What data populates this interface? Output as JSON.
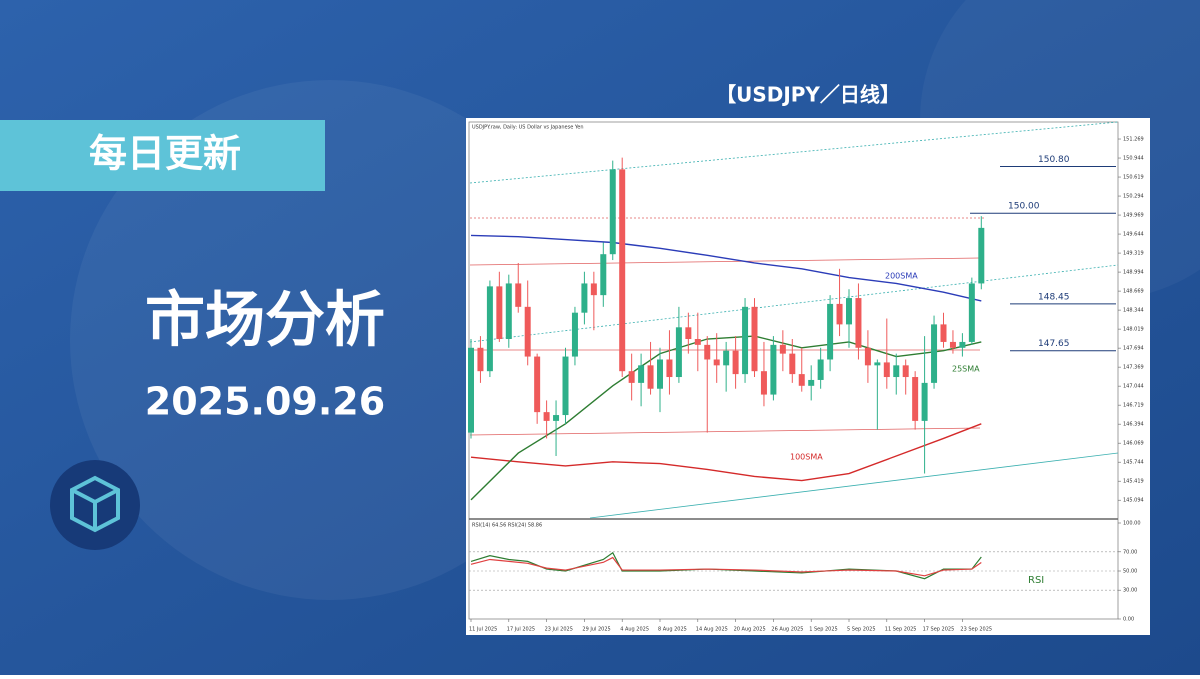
{
  "banner": {
    "tag": "每日更新",
    "title": "市场分析",
    "date": "2025.09.26"
  },
  "chart_heading": "【USDJPY／日线】",
  "chart_data": {
    "type": "candlestick",
    "header": "USDJPY.raw, Daily: US Dollar vs Japanese Yen",
    "categories": [
      "11 Jul 2025",
      null,
      null,
      null,
      "17 Jul 2025",
      null,
      null,
      null,
      "23 Jul 2025",
      null,
      null,
      null,
      "29 Jul 2025",
      null,
      null,
      null,
      "4 Aug 2025",
      null,
      null,
      null,
      "8 Aug 2025",
      null,
      null,
      null,
      "14 Aug 2025",
      null,
      null,
      null,
      "20 Aug 2025",
      null,
      null,
      null,
      "26 Aug 2025",
      null,
      null,
      null,
      "1 Sep 2025",
      null,
      null,
      null,
      "5 Sep 2025",
      null,
      null,
      null,
      "11 Sep 2025",
      null,
      null,
      null,
      "17 Sep 2025",
      null,
      null,
      null,
      "23 Sep 2025",
      null,
      null
    ],
    "open": [
      146.25,
      147.7,
      147.3,
      148.75,
      147.85,
      148.8,
      148.4,
      147.55,
      146.6,
      146.45,
      146.55,
      147.55,
      148.3,
      148.8,
      148.6,
      149.3,
      150.75,
      147.3,
      147.1,
      147.4,
      147.0,
      147.5,
      147.2,
      148.05,
      147.85,
      147.75,
      147.5,
      147.4,
      147.65,
      147.25,
      148.4,
      147.3,
      146.9,
      147.75,
      147.6,
      147.25,
      147.05,
      147.15,
      147.5,
      148.45,
      148.1,
      148.55,
      147.7,
      147.4,
      147.45,
      147.2,
      147.4,
      147.2,
      146.45,
      147.1,
      148.1,
      147.8,
      147.7,
      147.8,
      148.8
    ],
    "high": [
      147.85,
      147.9,
      148.85,
      149.0,
      148.95,
      149.15,
      148.85,
      147.6,
      146.8,
      146.8,
      147.7,
      148.4,
      149.0,
      149.0,
      149.5,
      150.9,
      150.95,
      147.6,
      147.6,
      147.8,
      147.7,
      148.0,
      148.4,
      148.3,
      148.3,
      147.9,
      147.95,
      147.8,
      147.9,
      148.55,
      148.55,
      147.8,
      147.9,
      148.0,
      147.85,
      147.7,
      147.4,
      147.7,
      148.6,
      149.05,
      148.7,
      148.8,
      148.0,
      147.5,
      148.2,
      147.6,
      147.5,
      147.3,
      147.9,
      148.25,
      148.3,
      148.0,
      147.95,
      148.9,
      149.95
    ],
    "low": [
      146.15,
      147.1,
      147.2,
      147.8,
      147.7,
      148.3,
      147.4,
      146.4,
      146.15,
      145.85,
      146.4,
      147.4,
      148.1,
      148.0,
      148.4,
      149.2,
      147.2,
      146.8,
      146.7,
      146.9,
      146.6,
      146.9,
      147.1,
      147.6,
      147.3,
      146.25,
      147.1,
      146.95,
      147.0,
      147.1,
      147.2,
      146.7,
      146.8,
      147.3,
      147.1,
      146.95,
      146.8,
      147.0,
      147.3,
      147.9,
      147.7,
      147.5,
      147.1,
      146.3,
      147.0,
      146.9,
      146.9,
      146.3,
      145.55,
      147.0,
      147.7,
      147.6,
      147.55,
      147.75,
      148.7
    ],
    "close": [
      147.7,
      147.3,
      148.75,
      147.85,
      148.8,
      148.4,
      147.55,
      146.6,
      146.45,
      146.55,
      147.55,
      148.3,
      148.8,
      148.6,
      149.3,
      150.75,
      147.3,
      147.1,
      147.4,
      147.0,
      147.5,
      147.2,
      148.05,
      147.85,
      147.75,
      147.5,
      147.4,
      147.65,
      147.25,
      148.4,
      147.3,
      146.9,
      147.75,
      147.6,
      147.25,
      147.05,
      147.15,
      147.5,
      148.45,
      148.1,
      148.55,
      147.7,
      147.4,
      147.45,
      147.2,
      147.4,
      147.2,
      146.45,
      147.1,
      148.1,
      147.8,
      147.7,
      147.8,
      148.8,
      149.75
    ],
    "up_color": "#2eb08a",
    "down_color": "#ef5a5a",
    "ylim": [
      144.79,
      151.56
    ],
    "yticks": [
      151.269,
      150.944,
      150.619,
      150.294,
      149.969,
      149.644,
      149.319,
      148.994,
      148.669,
      148.344,
      148.019,
      147.694,
      147.369,
      147.044,
      146.719,
      146.394,
      146.069,
      145.744,
      145.419,
      145.094
    ],
    "lines": [
      {
        "name": "200SMA",
        "color": "#2b3cb8",
        "x": [
          0,
          5,
          10,
          15,
          20,
          25,
          30,
          35,
          40,
          45,
          50,
          54
        ],
        "values": [
          149.62,
          149.6,
          149.55,
          149.5,
          149.4,
          149.28,
          149.15,
          149.05,
          148.9,
          148.8,
          148.65,
          148.5
        ]
      },
      {
        "name": "100SMA",
        "color": "#d42a2a",
        "x": [
          0,
          5,
          10,
          15,
          20,
          25,
          30,
          35,
          40,
          45,
          50,
          54
        ],
        "values": [
          145.83,
          145.75,
          145.68,
          145.75,
          145.72,
          145.62,
          145.5,
          145.43,
          145.55,
          145.85,
          146.15,
          146.4
        ]
      },
      {
        "name": "25SMA",
        "color": "#2e7d32",
        "x": [
          0,
          5,
          10,
          15,
          20,
          25,
          30,
          35,
          40,
          45,
          50,
          54
        ],
        "values": [
          145.1,
          145.9,
          146.4,
          147.05,
          147.6,
          147.85,
          147.9,
          147.7,
          147.8,
          147.55,
          147.65,
          147.8
        ]
      }
    ],
    "levels": [
      {
        "value": 150.8,
        "label": "150.80"
      },
      {
        "value": 150,
        "label": "150.00"
      },
      148.45,
      147.65
    ],
    "rsi": {
      "header": "RSI(14) 64.56 RSI(24) 58.86",
      "label": "RSI",
      "ylim": [
        0,
        100
      ],
      "yticks": [
        {
          "value": 100,
          "label": "100.00"
        },
        {
          "value": 70,
          "label": "70.00"
        },
        {
          "value": 50,
          "label": "50.00"
        },
        {
          "value": 30,
          "label": "30.00"
        },
        {
          "value": 0,
          "label": "0.00"
        }
      ],
      "series": [
        {
          "color": "#2e7d32",
          "x": [
            0,
            2,
            4,
            6,
            8,
            10,
            14,
            15,
            16,
            20,
            25,
            30,
            35,
            40,
            45,
            48,
            50,
            53,
            54
          ],
          "values": [
            60,
            66,
            62,
            60,
            52,
            50,
            62,
            69,
            50,
            50,
            52,
            50,
            48,
            52,
            50,
            42,
            52,
            52,
            64.56
          ]
        },
        {
          "color": "#e04040",
          "x": [
            0,
            2,
            4,
            6,
            8,
            10,
            14,
            15,
            16,
            20,
            25,
            30,
            35,
            40,
            45,
            48,
            50,
            53,
            54
          ],
          "values": [
            57,
            62,
            60,
            58,
            53,
            51,
            59,
            64,
            51,
            51,
            52,
            51,
            49,
            51,
            50,
            45,
            51,
            52,
            58.86
          ]
        }
      ]
    }
  }
}
